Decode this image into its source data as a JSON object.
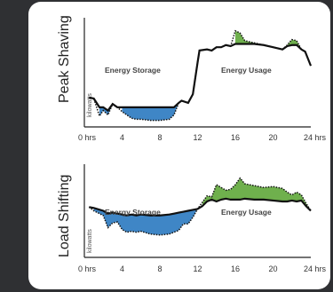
{
  "colors": {
    "background": "#2f3033",
    "panel": "#ffffff",
    "storage_fill": "#3f86c6",
    "usage_fill": "#6fb04d",
    "line": "#111111"
  },
  "chart_data": [
    {
      "type": "line",
      "title": "Peak Shaving",
      "ylabel": "kilowatts",
      "x_ticks": [
        "0 hrs",
        "4",
        "8",
        "12",
        "16",
        "20",
        "24 hrs"
      ],
      "xlim": [
        0,
        24
      ],
      "ylim": [
        0,
        100
      ],
      "regions": [
        "Energy Storage",
        "Energy Usage"
      ],
      "series": [
        {
          "role": "demand",
          "x": [
            0.5,
            1,
            1.6,
            2,
            2.5,
            3,
            3.5,
            4,
            4.5,
            5,
            5.5,
            6,
            7,
            8,
            9,
            9.5,
            10,
            10.3,
            11,
            11.5,
            12,
            12.2,
            13,
            13.5,
            14,
            14.5,
            15,
            15.5,
            16,
            16.5,
            17,
            18,
            19,
            20,
            21,
            21.5,
            22,
            22.5,
            23,
            23.4,
            24
          ],
          "y": [
            27,
            26,
            10,
            15,
            11,
            21,
            18,
            14,
            11,
            8,
            7,
            7,
            6,
            6,
            7,
            11,
            22,
            24,
            22,
            30,
            59,
            70,
            71,
            70,
            73,
            73,
            75,
            74,
            88,
            86,
            79,
            77,
            75,
            73,
            71,
            75,
            80,
            79,
            71,
            69,
            56
          ]
        },
        {
          "role": "grid",
          "x": [
            0.5,
            1,
            1.6,
            2,
            2.5,
            3,
            3.5,
            4,
            4.5,
            5,
            5.5,
            6,
            7,
            8,
            9,
            9.5,
            10,
            10.3,
            11,
            11.5,
            12,
            12.2,
            13,
            13.5,
            14,
            14.5,
            15,
            15.5,
            16,
            16.5,
            17,
            18,
            19,
            20,
            21,
            21.5,
            22,
            22.5,
            23,
            23.4,
            24
          ],
          "y": [
            27,
            26,
            18,
            18,
            15,
            21,
            18,
            18,
            18,
            18,
            18,
            18,
            18,
            18,
            18,
            18,
            22,
            24,
            22,
            30,
            59,
            70,
            71,
            70,
            73,
            73,
            75,
            74,
            76,
            76,
            76,
            76,
            75,
            73,
            71,
            74,
            75,
            75,
            71,
            69,
            56
          ]
        }
      ]
    },
    {
      "type": "line",
      "title": "Load Shifting",
      "ylabel": "kilowatts",
      "x_ticks": [
        "0 hrs",
        "4",
        "8",
        "12",
        "16",
        "20",
        "24 hrs"
      ],
      "xlim": [
        0,
        24
      ],
      "ylim": [
        0,
        100
      ],
      "regions": [
        "Energy Storage",
        "Energy Usage"
      ],
      "series": [
        {
          "role": "demand",
          "x": [
            0.5,
            1,
            2,
            2.5,
            3,
            3.5,
            4,
            4.5,
            5,
            5.5,
            6,
            7,
            8,
            9,
            9.5,
            10,
            10.5,
            11,
            11.5,
            12,
            12.5,
            13,
            13.5,
            14,
            14.5,
            15,
            15.5,
            16,
            16.5,
            17,
            18,
            19,
            20,
            21,
            21.5,
            22,
            22.5,
            23,
            23.5,
            24
          ],
          "y": [
            54,
            50,
            45,
            32,
            37,
            38,
            30,
            27,
            28,
            27,
            28,
            25,
            24,
            25,
            27,
            29,
            36,
            36,
            43,
            52,
            59,
            66,
            65,
            78,
            75,
            72,
            73,
            78,
            85,
            79,
            77,
            75,
            76,
            74,
            70,
            67,
            70,
            67,
            58,
            50
          ]
        },
        {
          "role": "grid",
          "x": [
            0.5,
            1,
            2,
            2.5,
            3,
            3.5,
            4,
            4.5,
            5,
            5.5,
            6,
            7,
            8,
            9,
            9.5,
            10,
            10.5,
            11,
            11.5,
            12,
            12.5,
            13,
            13.5,
            14,
            14.5,
            15,
            15.5,
            16,
            16.5,
            17,
            18,
            19,
            20,
            21,
            21.5,
            22,
            22.5,
            23,
            23.5,
            24
          ],
          "y": [
            54,
            53,
            50,
            47,
            48,
            47,
            46,
            45,
            46,
            45,
            46,
            45,
            45,
            46,
            47,
            48,
            49,
            50,
            51,
            52,
            55,
            60,
            62,
            60,
            62,
            63,
            62,
            62,
            62,
            63,
            62,
            62,
            61,
            60,
            60,
            61,
            60,
            61,
            55,
            50
          ]
        }
      ]
    }
  ]
}
